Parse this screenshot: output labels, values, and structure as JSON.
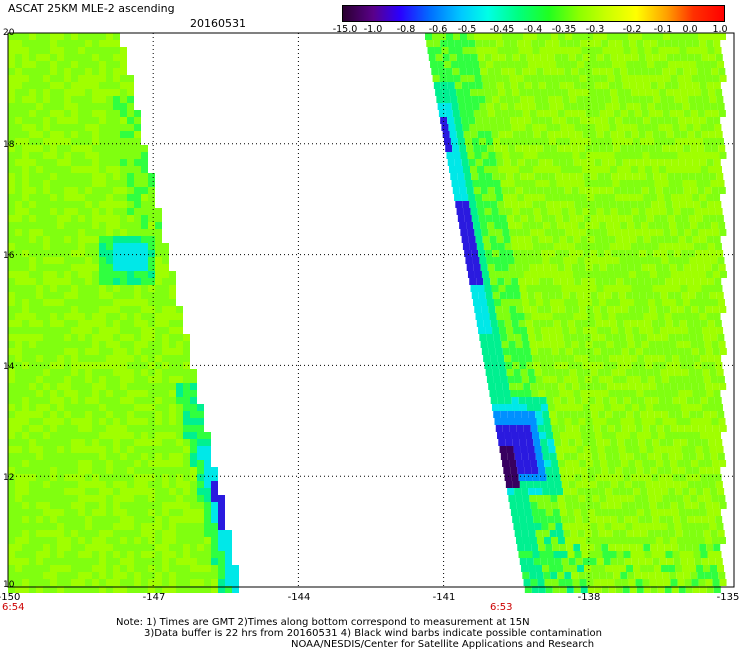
{
  "header": {
    "title": "ASCAT 25KM MLE-2 ascending",
    "date": "20160531"
  },
  "colorbar": {
    "labels": [
      "-15.0",
      "-1.0",
      "-0.8",
      "-0.6",
      "-0.5",
      "-0.45",
      "-0.4",
      "-0.35",
      "-0.3",
      "-0.2",
      "-0.1",
      "0.0",
      "1.0"
    ],
    "colors": [
      "#2a0030",
      "#5a008a",
      "#2a00ff",
      "#0070ff",
      "#00c8ff",
      "#00ffe6",
      "#00ff80",
      "#20ff20",
      "#8cff00",
      "#c8ff00",
      "#ffff00",
      "#ffa000",
      "#ff3000",
      "#ff0000"
    ]
  },
  "map": {
    "lon_ticks": [
      "-150",
      "-147",
      "-144",
      "-141",
      "-138",
      "-135"
    ],
    "lat_ticks": [
      "10",
      "12",
      "14",
      "16",
      "18",
      "20"
    ],
    "lon_range": [
      -150,
      -135
    ],
    "lat_range": [
      10,
      20
    ],
    "pass_times": [
      "6:54",
      "6:53"
    ],
    "swath_colors": [
      "#a0ff00",
      "#80ff10",
      "#30ff40",
      "#00f090",
      "#00e8e8",
      "#0090ff",
      "#2a1adf",
      "#4a00b0",
      "#380060"
    ]
  },
  "notes": {
    "line1": "Note: 1) Times are GMT 2)Times along bottom correspond to measurement at 15N",
    "line2": "3)Data buffer is 22 hrs from 20160531 4) Black wind barbs indicate possible contamination",
    "line3": "NOAA/NESDIS/Center for Satellite Applications and Research"
  }
}
